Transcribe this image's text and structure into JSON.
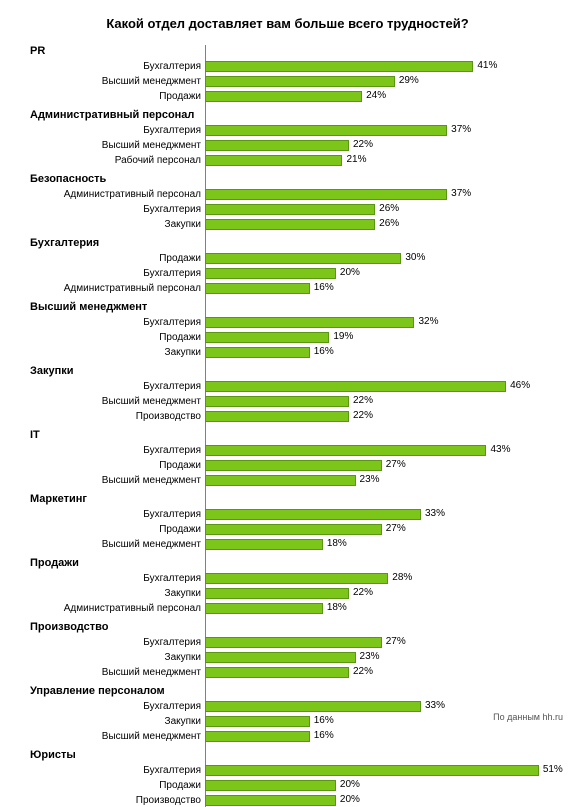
{
  "title": "Какой отдел доставляет вам больше всего трудностей?",
  "footer": "По данным hh.ru",
  "bar_color": "#7bc618",
  "bar_border": "#5a9612",
  "max_value": 55,
  "groups": [
    {
      "name": "PR",
      "items": [
        {
          "label": "Бухгалтерия",
          "value": 41
        },
        {
          "label": "Высший менеджмент",
          "value": 29
        },
        {
          "label": "Продажи",
          "value": 24
        }
      ]
    },
    {
      "name": "Административный персонал",
      "items": [
        {
          "label": "Бухгалтерия",
          "value": 37
        },
        {
          "label": "Высший менеджмент",
          "value": 22
        },
        {
          "label": "Рабочий персонал",
          "value": 21
        }
      ]
    },
    {
      "name": "Безопасность",
      "items": [
        {
          "label": "Административный персонал",
          "value": 37
        },
        {
          "label": "Бухгалтерия",
          "value": 26
        },
        {
          "label": "Закупки",
          "value": 26
        }
      ]
    },
    {
      "name": "Бухгалтерия",
      "items": [
        {
          "label": "Продажи",
          "value": 30
        },
        {
          "label": "Бухгалтерия",
          "value": 20
        },
        {
          "label": "Административный персонал",
          "value": 16
        }
      ]
    },
    {
      "name": "Высший менеджмент",
      "items": [
        {
          "label": "Бухгалтерия",
          "value": 32
        },
        {
          "label": "Продажи",
          "value": 19
        },
        {
          "label": "Закупки",
          "value": 16
        }
      ]
    },
    {
      "name": "Закупки",
      "items": [
        {
          "label": "Бухгалтерия",
          "value": 46
        },
        {
          "label": "Высший менеджмент",
          "value": 22
        },
        {
          "label": "Производство",
          "value": 22
        }
      ]
    },
    {
      "name": "IT",
      "items": [
        {
          "label": "Бухгалтерия",
          "value": 43
        },
        {
          "label": "Продажи",
          "value": 27
        },
        {
          "label": "Высший менеджмент",
          "value": 23
        }
      ]
    },
    {
      "name": "Маркетинг",
      "items": [
        {
          "label": "Бухгалтерия",
          "value": 33
        },
        {
          "label": "Продажи",
          "value": 27
        },
        {
          "label": "Высший менеджмент",
          "value": 18
        }
      ]
    },
    {
      "name": "Продажи",
      "items": [
        {
          "label": "Бухгалтерия",
          "value": 28
        },
        {
          "label": "Закупки",
          "value": 22
        },
        {
          "label": "Административный персонал",
          "value": 18
        }
      ]
    },
    {
      "name": "Производство",
      "items": [
        {
          "label": "Бухгалтерия",
          "value": 27
        },
        {
          "label": "Закупки",
          "value": 23
        },
        {
          "label": "Высший менеджмент",
          "value": 22
        }
      ]
    },
    {
      "name": "Управление персоналом",
      "items": [
        {
          "label": "Бухгалтерия",
          "value": 33
        },
        {
          "label": "Закупки",
          "value": 16
        },
        {
          "label": "Высший менеджмент",
          "value": 16
        }
      ]
    },
    {
      "name": "Юристы",
      "items": [
        {
          "label": "Бухгалтерия",
          "value": 51
        },
        {
          "label": "Продажи",
          "value": 20
        },
        {
          "label": "Производство",
          "value": 20
        }
      ]
    }
  ]
}
